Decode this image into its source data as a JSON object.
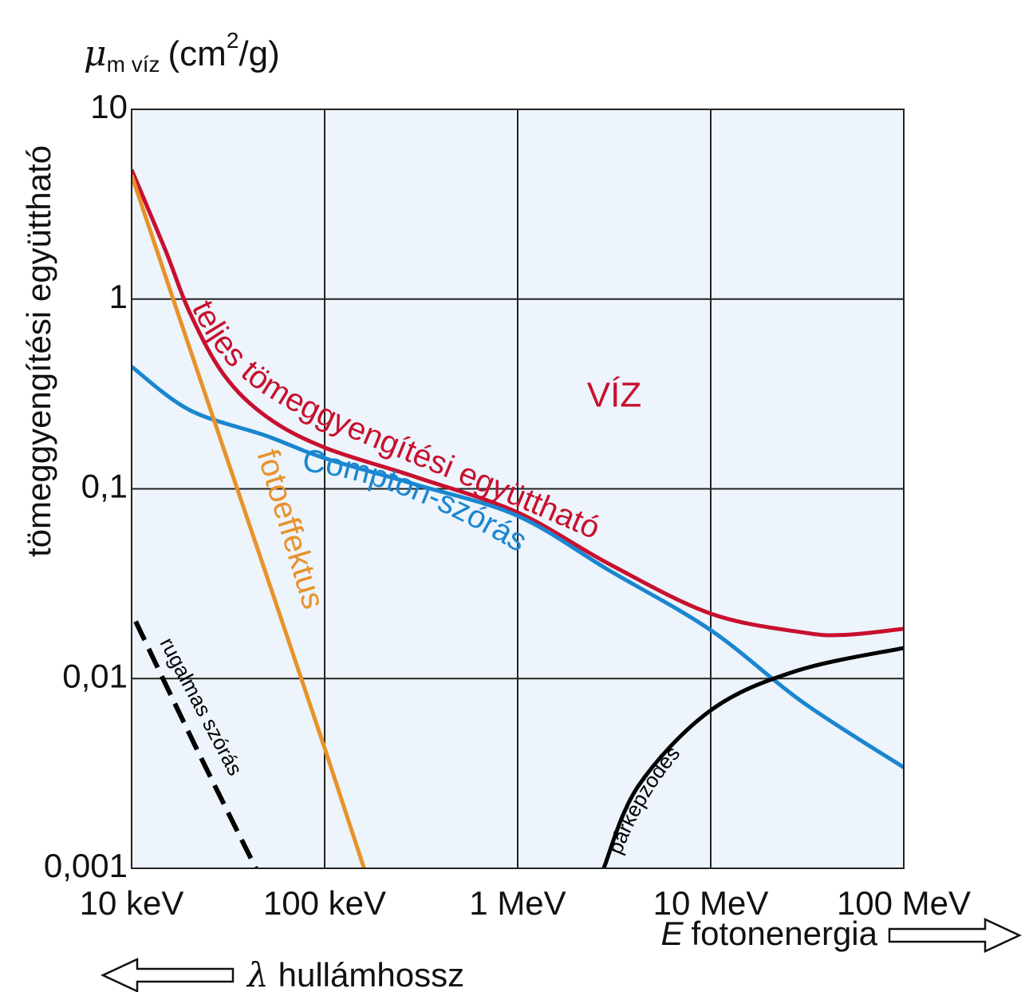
{
  "chart_data": {
    "type": "line",
    "log_x": true,
    "log_y": true,
    "grid": true,
    "y_label": "tömeggyengítési együttható",
    "y_unit": {
      "symbol": "μ",
      "subscript": "m víz",
      "unit": "(cm",
      "superscript": "2",
      "unit_end": "/g)"
    },
    "x_label": {
      "symbol": "E",
      "text": "fotonenergia"
    },
    "wavelength_label": {
      "symbol": "λ",
      "text": "hullámhossz"
    },
    "annotation": "VÍZ",
    "xlim": [
      10,
      100000
    ],
    "ylim": [
      0.001,
      10
    ],
    "xticks": [
      {
        "value": 10,
        "label": "10 keV"
      },
      {
        "value": 100,
        "label": "100 keV"
      },
      {
        "value": 1000,
        "label": "1 MeV"
      },
      {
        "value": 10000,
        "label": "10 MeV"
      },
      {
        "value": 100000,
        "label": "100 MeV"
      }
    ],
    "yticks": [
      10,
      1,
      {
        "value": 0.1,
        "label": "0,1"
      },
      {
        "value": 0.01,
        "label": "0,01"
      },
      {
        "value": 0.001,
        "label": "0,001"
      }
    ],
    "series": [
      {
        "name": "teljes tömeggyengítési együttható",
        "color": "#c8102e",
        "x": [
          10,
          15,
          20,
          30,
          50,
          100,
          300,
          1000,
          3000,
          10000,
          30000,
          50000,
          100000
        ],
        "values": [
          4.8,
          1.8,
          0.85,
          0.4,
          0.24,
          0.165,
          0.115,
          0.075,
          0.04,
          0.022,
          0.0175,
          0.017,
          0.0183
        ]
      },
      {
        "name": "Compton-szórás",
        "color": "#1a86d0",
        "x": [
          10,
          20,
          50,
          100,
          300,
          1000,
          3000,
          10000,
          30000,
          100000
        ],
        "values": [
          0.44,
          0.26,
          0.19,
          0.145,
          0.105,
          0.072,
          0.037,
          0.018,
          0.0075,
          0.0034
        ]
      },
      {
        "name": "fotoeffektus",
        "color": "#e8922a",
        "x": [
          10,
          20,
          50,
          100,
          160
        ],
        "values": [
          4.5,
          0.55,
          0.035,
          0.0043,
          0.001
        ]
      },
      {
        "name": "rugalmas szórás",
        "color": "#000000",
        "dashed": true,
        "x": [
          10.5,
          21.4,
          44
        ],
        "values": [
          0.02,
          0.0044,
          0.001
        ]
      },
      {
        "name": "párképződés",
        "color": "#000000",
        "x": [
          2790,
          4200,
          10000,
          28000,
          100000
        ],
        "values": [
          0.001,
          0.0027,
          0.0068,
          0.011,
          0.0145
        ]
      }
    ]
  }
}
